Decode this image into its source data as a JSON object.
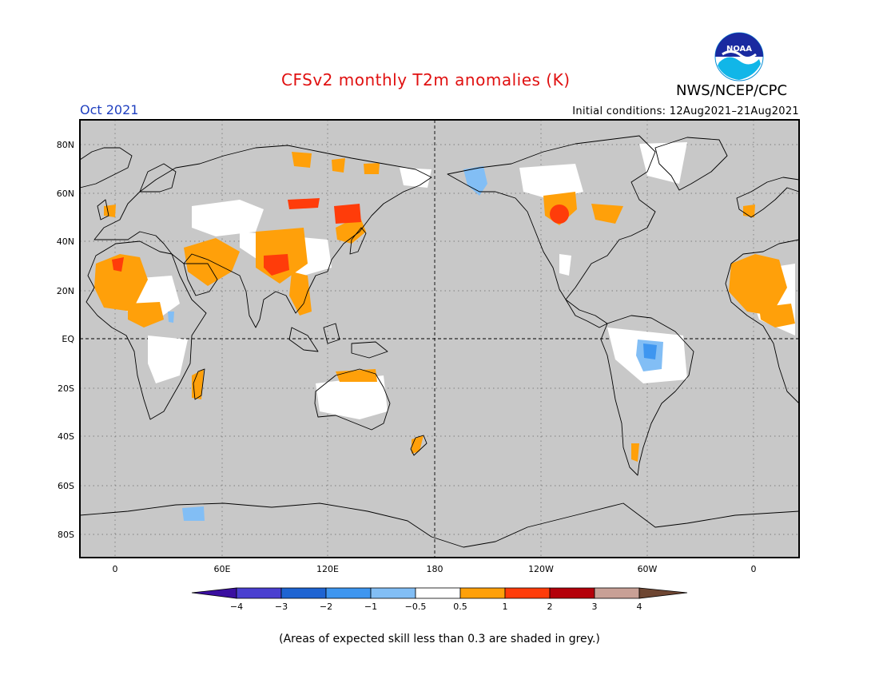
{
  "header": {
    "title": "CFSv2 monthly T2m anomalies (K)",
    "agency": "NWS/NCEP/CPC",
    "logo_text": "NOAA",
    "month": "Oct 2021",
    "initial_conditions": "Initial conditions: 12Aug2021–21Aug2021"
  },
  "map": {
    "background_color": "#c8c8c8",
    "lat_labels": [
      "80N",
      "60N",
      "40N",
      "20N",
      "EQ",
      "20S",
      "40S",
      "60S",
      "80S"
    ],
    "lon_labels": [
      "0",
      "60E",
      "120E",
      "180",
      "120W",
      "60W",
      "0"
    ]
  },
  "colorbar": {
    "colors": [
      "#3a0fa0",
      "#4a3fd0",
      "#1e64d2",
      "#3e96f0",
      "#82bef5",
      "#ffffff",
      "#ffa00a",
      "#ff3c0a",
      "#b4000a",
      "#c8a096",
      "#6e4632"
    ],
    "tick_labels": [
      "−4",
      "−3",
      "−2",
      "−1",
      "−0.5",
      "0.5",
      "1",
      "2",
      "3",
      "4"
    ]
  },
  "footnote": "(Areas of expected skill less than 0.3 are shaded in grey.)"
}
